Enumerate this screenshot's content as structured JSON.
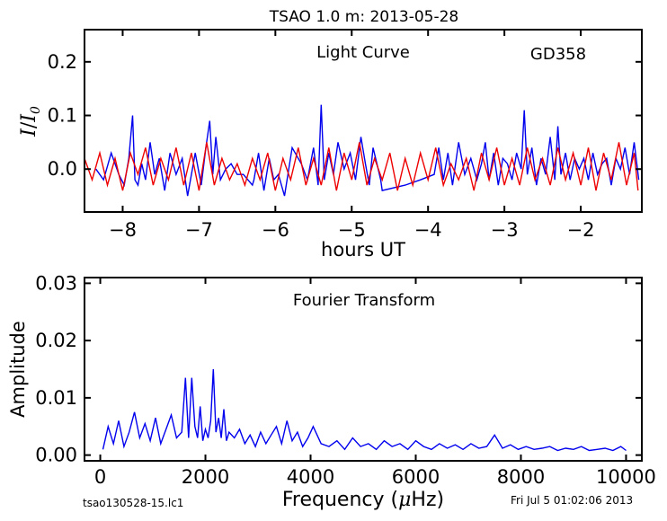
{
  "title": "TSAO 1.0 m:  2013-05-28",
  "footer": {
    "left": "tsao130528-15.lc1",
    "right": "Fri Jul  5 01:02:06 2013"
  },
  "chart_data": [
    {
      "type": "line",
      "title": "Light Curve",
      "annotation": "GD358",
      "xlabel": "hours UT",
      "ylabel_main": "I",
      "ylabel_sub": "0",
      "xlim": [
        -8.5,
        -1.2
      ],
      "ylim": [
        -0.08,
        0.26
      ],
      "xticks": [
        -8,
        -7,
        -6,
        -5,
        -4,
        -3,
        -2
      ],
      "xtick_labels": [
        "−8",
        "−7",
        "−6",
        "−5",
        "−4",
        "−3",
        "−2"
      ],
      "yticks": [
        0.0,
        0.1,
        0.2
      ],
      "ytick_labels": [
        "0.0",
        "0.1",
        "0.2"
      ],
      "grid": false,
      "colors": {
        "blue": "#0000ee",
        "red": "#ee0000"
      },
      "series": [
        {
          "color": "blue",
          "x": [
            -8.35,
            -8.25,
            -8.15,
            -8.05,
            -7.98,
            -7.92,
            -7.87,
            -7.84,
            -7.8,
            -7.75,
            -7.7,
            -7.64,
            -7.58,
            -7.52,
            -7.45,
            -7.38,
            -7.3,
            -7.22,
            -7.15,
            -7.05,
            -6.97,
            -6.91,
            -6.86,
            -6.82,
            -6.78,
            -6.72,
            -6.65,
            -6.58,
            -6.5,
            -6.42,
            -6.3,
            -6.28,
            -6.22,
            -6.15,
            -6.08,
            -6.02,
            -5.96,
            -5.88,
            -5.78,
            -5.66,
            -5.58,
            -5.5,
            -5.44,
            -5.4,
            -5.36,
            -5.3,
            -5.24,
            -5.18,
            -5.1,
            -5.02,
            -4.95,
            -4.88,
            -4.82,
            -4.77,
            -4.72,
            -4.67,
            -4.62,
            -4.6,
            -4.3,
            -4.1,
            -3.92,
            -3.86,
            -3.8,
            -3.74,
            -3.68,
            -3.6,
            -3.52,
            -3.44,
            -3.36,
            -3.3,
            -3.25,
            -3.2,
            -3.14,
            -3.08,
            -3.02,
            -2.96,
            -2.9,
            -2.84,
            -2.78,
            -2.74,
            -2.7,
            -2.64,
            -2.58,
            -2.52,
            -2.46,
            -2.4,
            -2.34,
            -2.3,
            -2.26,
            -2.2,
            -2.14,
            -2.08,
            -2.02,
            -1.96,
            -1.9,
            -1.84,
            -1.78,
            -1.72,
            -1.66,
            -1.6,
            -1.54,
            -1.48,
            -1.42,
            -1.36,
            -1.3,
            -1.24
          ],
          "y": [
            0.0,
            -0.02,
            0.03,
            -0.01,
            -0.03,
            0.02,
            0.1,
            -0.02,
            -0.03,
            0.01,
            -0.02,
            0.05,
            -0.01,
            0.02,
            -0.04,
            0.03,
            -0.01,
            0.02,
            -0.05,
            0.03,
            -0.03,
            0.04,
            0.09,
            -0.01,
            0.06,
            -0.02,
            0.0,
            0.01,
            -0.01,
            -0.01,
            -0.03,
            -0.02,
            0.03,
            -0.04,
            0.02,
            -0.02,
            -0.01,
            -0.05,
            0.04,
            0.01,
            -0.02,
            0.04,
            -0.03,
            0.12,
            -0.02,
            0.03,
            -0.01,
            0.05,
            0.0,
            0.03,
            -0.02,
            0.06,
            0.01,
            -0.03,
            0.04,
            0.01,
            -0.02,
            -0.04,
            -0.03,
            -0.02,
            -0.01,
            0.04,
            -0.02,
            0.03,
            -0.03,
            0.05,
            -0.01,
            0.02,
            -0.02,
            0.01,
            0.05,
            -0.02,
            0.03,
            -0.03,
            0.02,
            0.01,
            -0.02,
            0.03,
            0.0,
            0.11,
            -0.01,
            0.04,
            -0.03,
            0.02,
            -0.01,
            0.06,
            -0.02,
            0.08,
            -0.01,
            0.03,
            -0.02,
            0.02,
            0.0,
            0.02,
            -0.02,
            0.03,
            -0.01,
            0.01,
            0.02,
            -0.03,
            0.02,
            0.0,
            0.04,
            -0.01,
            0.05,
            -0.02
          ]
        },
        {
          "color": "red",
          "x": [
            -8.5,
            -8.4,
            -8.3,
            -8.2,
            -8.1,
            -8.0,
            -7.9,
            -7.8,
            -7.7,
            -7.6,
            -7.5,
            -7.4,
            -7.3,
            -7.2,
            -7.1,
            -7.0,
            -6.9,
            -6.8,
            -6.7,
            -6.6,
            -6.5,
            -6.4,
            -6.3,
            -6.2,
            -6.1,
            -6.0,
            -5.9,
            -5.8,
            -5.7,
            -5.6,
            -5.5,
            -5.4,
            -5.3,
            -5.2,
            -5.1,
            -5.0,
            -4.9,
            -4.8,
            -4.7,
            -4.6,
            -4.5,
            -4.4,
            -4.3,
            -4.2,
            -4.1,
            -4.0,
            -3.9,
            -3.8,
            -3.7,
            -3.6,
            -3.5,
            -3.4,
            -3.3,
            -3.2,
            -3.1,
            -3.0,
            -2.9,
            -2.8,
            -2.7,
            -2.6,
            -2.5,
            -2.4,
            -2.3,
            -2.2,
            -2.1,
            -2.0,
            -1.9,
            -1.8,
            -1.7,
            -1.6,
            -1.5,
            -1.4,
            -1.3,
            -1.25
          ],
          "y": [
            0.02,
            -0.02,
            0.03,
            -0.03,
            0.02,
            -0.04,
            0.03,
            -0.01,
            0.04,
            -0.03,
            0.02,
            -0.02,
            0.04,
            -0.03,
            0.03,
            -0.04,
            0.05,
            -0.03,
            0.02,
            -0.02,
            0.01,
            -0.03,
            0.02,
            -0.02,
            0.03,
            -0.04,
            0.02,
            -0.02,
            0.04,
            -0.03,
            0.02,
            -0.03,
            0.04,
            -0.04,
            0.03,
            -0.02,
            0.05,
            -0.03,
            0.02,
            -0.02,
            0.03,
            -0.04,
            0.02,
            -0.03,
            0.03,
            -0.02,
            0.04,
            -0.03,
            0.01,
            -0.02,
            0.02,
            -0.04,
            0.03,
            -0.02,
            0.04,
            -0.03,
            0.02,
            -0.03,
            0.04,
            -0.02,
            0.02,
            -0.03,
            0.04,
            -0.02,
            0.03,
            -0.03,
            0.04,
            -0.04,
            0.03,
            -0.02,
            0.05,
            -0.03,
            0.03,
            -0.04
          ]
        }
      ]
    },
    {
      "type": "line",
      "title": "Fourier Transform",
      "xlabel_main": "Frequency (",
      "xlabel_unit": "μ",
      "xlabel_tail": "Hz)",
      "ylabel": "Amplitude",
      "xlim": [
        -300,
        10300
      ],
      "ylim": [
        -0.001,
        0.031
      ],
      "xticks": [
        0,
        2000,
        4000,
        6000,
        8000,
        10000
      ],
      "xtick_labels": [
        "0",
        "2000",
        "4000",
        "6000",
        "8000",
        "10000"
      ],
      "yticks": [
        0.0,
        0.01,
        0.02,
        0.03
      ],
      "ytick_labels": [
        "0.00",
        "0.01",
        "0.02",
        "0.03"
      ],
      "grid": false,
      "series": [
        {
          "color": "blue",
          "x": [
            50,
            150,
            250,
            350,
            450,
            550,
            650,
            750,
            850,
            950,
            1050,
            1150,
            1250,
            1350,
            1450,
            1550,
            1620,
            1680,
            1740,
            1800,
            1850,
            1900,
            1950,
            2000,
            2050,
            2100,
            2150,
            2200,
            2250,
            2300,
            2350,
            2400,
            2450,
            2550,
            2650,
            2750,
            2850,
            2950,
            3050,
            3150,
            3250,
            3350,
            3450,
            3550,
            3650,
            3750,
            3850,
            3950,
            4050,
            4200,
            4350,
            4500,
            4650,
            4800,
            4950,
            5100,
            5250,
            5400,
            5550,
            5700,
            5850,
            6000,
            6150,
            6300,
            6450,
            6600,
            6750,
            6900,
            7050,
            7200,
            7350,
            7500,
            7650,
            7800,
            7950,
            8100,
            8250,
            8400,
            8550,
            8700,
            8850,
            9000,
            9150,
            9300,
            9450,
            9600,
            9750,
            9900,
            10000
          ],
          "y": [
            0.001,
            0.005,
            0.002,
            0.006,
            0.0015,
            0.004,
            0.0075,
            0.003,
            0.0055,
            0.0025,
            0.0065,
            0.002,
            0.0045,
            0.007,
            0.003,
            0.004,
            0.0135,
            0.003,
            0.0135,
            0.005,
            0.003,
            0.0085,
            0.0025,
            0.0045,
            0.003,
            0.006,
            0.015,
            0.004,
            0.0065,
            0.003,
            0.008,
            0.0025,
            0.004,
            0.003,
            0.0045,
            0.002,
            0.0035,
            0.0015,
            0.004,
            0.002,
            0.0035,
            0.005,
            0.002,
            0.006,
            0.0025,
            0.004,
            0.0015,
            0.003,
            0.005,
            0.002,
            0.0015,
            0.0025,
            0.001,
            0.003,
            0.0015,
            0.002,
            0.001,
            0.0025,
            0.0015,
            0.002,
            0.001,
            0.0025,
            0.0015,
            0.001,
            0.002,
            0.0012,
            0.0018,
            0.001,
            0.002,
            0.0012,
            0.0015,
            0.0035,
            0.0012,
            0.0018,
            0.001,
            0.0015,
            0.001,
            0.0012,
            0.0015,
            0.0008,
            0.0012,
            0.001,
            0.0015,
            0.0008,
            0.001,
            0.0012,
            0.0008,
            0.0015,
            0.0008
          ]
        }
      ]
    }
  ]
}
